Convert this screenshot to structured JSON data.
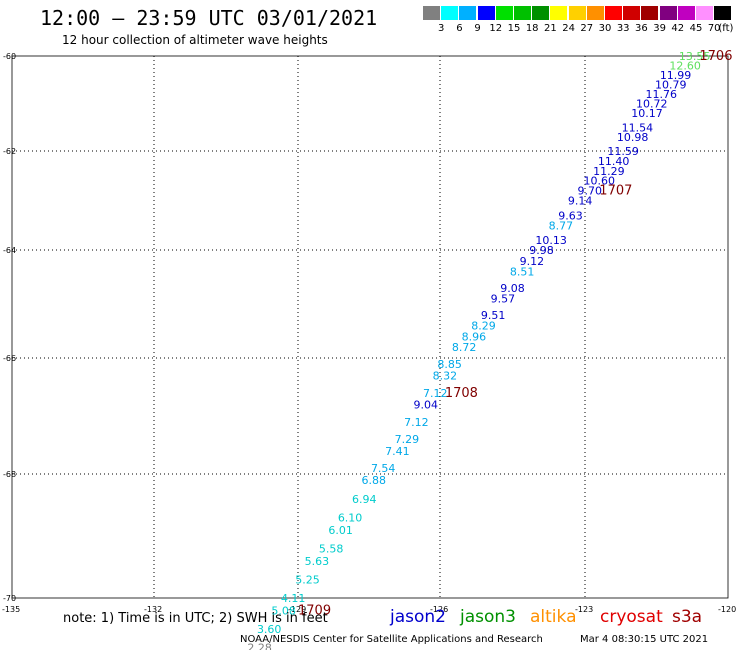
{
  "header": {
    "title": "12:00 – 23:59 UTC 03/01/2021",
    "subtitle": "12 hour collection of altimeter wave heights"
  },
  "legend": {
    "unit": "(ft)",
    "levels": [
      {
        "label": "3",
        "color": "#808080"
      },
      {
        "label": "6",
        "color": "#00ffff"
      },
      {
        "label": "9",
        "color": "#00b0ff"
      },
      {
        "label": "12",
        "color": "#0000ff"
      },
      {
        "label": "15",
        "color": "#00e000"
      },
      {
        "label": "18",
        "color": "#00c000"
      },
      {
        "label": "21",
        "color": "#009000"
      },
      {
        "label": "24",
        "color": "#ffff00"
      },
      {
        "label": "27",
        "color": "#ffd000"
      },
      {
        "label": "30",
        "color": "#ff9000"
      },
      {
        "label": "33",
        "color": "#ff0000"
      },
      {
        "label": "36",
        "color": "#d00000"
      },
      {
        "label": "39",
        "color": "#a00000"
      },
      {
        "label": "42",
        "color": "#800080"
      },
      {
        "label": "45",
        "color": "#c000c0"
      },
      {
        "label": "70",
        "color": "#ff90ff"
      },
      {
        "label": "",
        "color": "#000000"
      }
    ]
  },
  "axes": {
    "lon_labels": [
      "-135",
      "-132",
      "-129",
      "-126",
      "-123",
      "-120"
    ],
    "lat_labels": [
      "-60",
      "-62",
      "-64",
      "-66",
      "-68",
      "-70"
    ]
  },
  "chart_data": {
    "type": "scatter",
    "x_axis": "longitude",
    "y_axis": "latitude",
    "points": [
      {
        "lon": -120.7,
        "lat": -60.0,
        "value": "13.55",
        "color": "#5ee05e"
      },
      {
        "lon": -120.9,
        "lat": -60.2,
        "value": "12.60",
        "color": "#5ee05e"
      },
      {
        "lon": -121.1,
        "lat": -60.4,
        "value": "11.99",
        "color": "#0000c8"
      },
      {
        "lon": -121.2,
        "lat": -60.6,
        "value": "10.79",
        "color": "#0000c8"
      },
      {
        "lon": -121.4,
        "lat": -60.8,
        "value": "11.76",
        "color": "#0000c8"
      },
      {
        "lon": -121.6,
        "lat": -61.0,
        "value": "10.72",
        "color": "#0000c8"
      },
      {
        "lon": -121.7,
        "lat": -61.2,
        "value": "10.17",
        "color": "#0000c8"
      },
      {
        "lon": -121.9,
        "lat": -61.5,
        "value": "11.54",
        "color": "#0000c8"
      },
      {
        "lon": -122.0,
        "lat": -61.7,
        "value": "10.98",
        "color": "#0000c8"
      },
      {
        "lon": -122.2,
        "lat": -62.0,
        "value": "11.59",
        "color": "#0000c8"
      },
      {
        "lon": -122.4,
        "lat": -62.2,
        "value": "11.40",
        "color": "#0000c8"
      },
      {
        "lon": -122.5,
        "lat": -62.4,
        "value": "11.29",
        "color": "#0000c8"
      },
      {
        "lon": -122.7,
        "lat": -62.6,
        "value": "10.60",
        "color": "#0000c8"
      },
      {
        "lon": -122.9,
        "lat": -62.8,
        "value": "9.70",
        "color": "#0000c8"
      },
      {
        "lon": -123.1,
        "lat": -63.0,
        "value": "9.14",
        "color": "#0000c8"
      },
      {
        "lon": -123.3,
        "lat": -63.3,
        "value": "9.63",
        "color": "#0000c8"
      },
      {
        "lon": -123.5,
        "lat": -63.5,
        "value": "8.77",
        "color": "#00a8e8"
      },
      {
        "lon": -123.7,
        "lat": -63.8,
        "value": "10.13",
        "color": "#0000c8"
      },
      {
        "lon": -123.9,
        "lat": -64.0,
        "value": "9.98",
        "color": "#0000c8"
      },
      {
        "lon": -124.1,
        "lat": -64.2,
        "value": "9.12",
        "color": "#0000c8"
      },
      {
        "lon": -124.3,
        "lat": -64.4,
        "value": "8.51",
        "color": "#00a8e8"
      },
      {
        "lon": -124.5,
        "lat": -64.7,
        "value": "9.08",
        "color": "#0000c8"
      },
      {
        "lon": -124.7,
        "lat": -64.9,
        "value": "9.57",
        "color": "#0000c8"
      },
      {
        "lon": -124.9,
        "lat": -65.2,
        "value": "9.51",
        "color": "#0000c8"
      },
      {
        "lon": -125.1,
        "lat": -65.4,
        "value": "8.29",
        "color": "#00a8e8"
      },
      {
        "lon": -125.3,
        "lat": -65.6,
        "value": "8.96",
        "color": "#00a8e8"
      },
      {
        "lon": -125.5,
        "lat": -65.8,
        "value": "8.72",
        "color": "#00a8e8"
      },
      {
        "lon": -125.8,
        "lat": -66.1,
        "value": "8.85",
        "color": "#00a8e8"
      },
      {
        "lon": -125.9,
        "lat": -66.3,
        "value": "8.32",
        "color": "#00a8e8"
      },
      {
        "lon": -126.1,
        "lat": -66.6,
        "value": "7.12",
        "color": "#00a8e8"
      },
      {
        "lon": -126.3,
        "lat": -66.8,
        "value": "9.04",
        "color": "#0000c8"
      },
      {
        "lon": -126.5,
        "lat": -67.1,
        "value": "7.12",
        "color": "#00a8e8"
      },
      {
        "lon": -126.7,
        "lat": -67.4,
        "value": "7.29",
        "color": "#00a8e8"
      },
      {
        "lon": -126.9,
        "lat": -67.6,
        "value": "7.41",
        "color": "#00a8e8"
      },
      {
        "lon": -127.2,
        "lat": -67.9,
        "value": "7.54",
        "color": "#00a8e8"
      },
      {
        "lon": -127.4,
        "lat": -68.1,
        "value": "6.88",
        "color": "#00a8e8"
      },
      {
        "lon": -127.6,
        "lat": -68.4,
        "value": "6.94",
        "color": "#00cccc"
      },
      {
        "lon": -127.9,
        "lat": -68.7,
        "value": "6.10",
        "color": "#00cccc"
      },
      {
        "lon": -128.1,
        "lat": -68.9,
        "value": "6.01",
        "color": "#00cccc"
      },
      {
        "lon": -128.3,
        "lat": -69.2,
        "value": "5.58",
        "color": "#00cccc"
      },
      {
        "lon": -128.6,
        "lat": -69.4,
        "value": "5.63",
        "color": "#00cccc"
      },
      {
        "lon": -128.8,
        "lat": -69.7,
        "value": "5.25",
        "color": "#00cccc"
      },
      {
        "lon": -129.1,
        "lat": -70.0,
        "value": "4.11",
        "color": "#00cccc"
      },
      {
        "lon": -129.3,
        "lat": -70.2,
        "value": "5.08",
        "color": "#00cccc"
      },
      {
        "lon": -129.6,
        "lat": -70.5,
        "value": "3.60",
        "color": "#00cccc"
      },
      {
        "lon": -129.8,
        "lat": -70.8,
        "value": "2.28",
        "color": "#808080"
      }
    ],
    "time_markers": [
      {
        "label": "1706",
        "lon": -120.6,
        "lat": -60.0
      },
      {
        "label": "1707",
        "lon": -122.7,
        "lat": -62.8
      },
      {
        "label": "1708",
        "lon": -125.9,
        "lat": -66.6
      },
      {
        "label": "1709",
        "lon": -129.0,
        "lat": -70.2
      }
    ]
  },
  "footer": {
    "note": "note: 1) Time is in UTC; 2) SWH is in feet",
    "satellites": [
      {
        "name": "jason2",
        "color": "#0000cc"
      },
      {
        "name": "jason3",
        "color": "#009000"
      },
      {
        "name": "altika",
        "color": "#ff9000"
      },
      {
        "name": "cryosat",
        "color": "#e00000"
      },
      {
        "name": "s3a",
        "color": "#a00000"
      }
    ],
    "credit": "NOAA/NESDIS Center for Satellite Applications and Research",
    "timestamp": "Mar  4 08:30:15 UTC 2021"
  }
}
